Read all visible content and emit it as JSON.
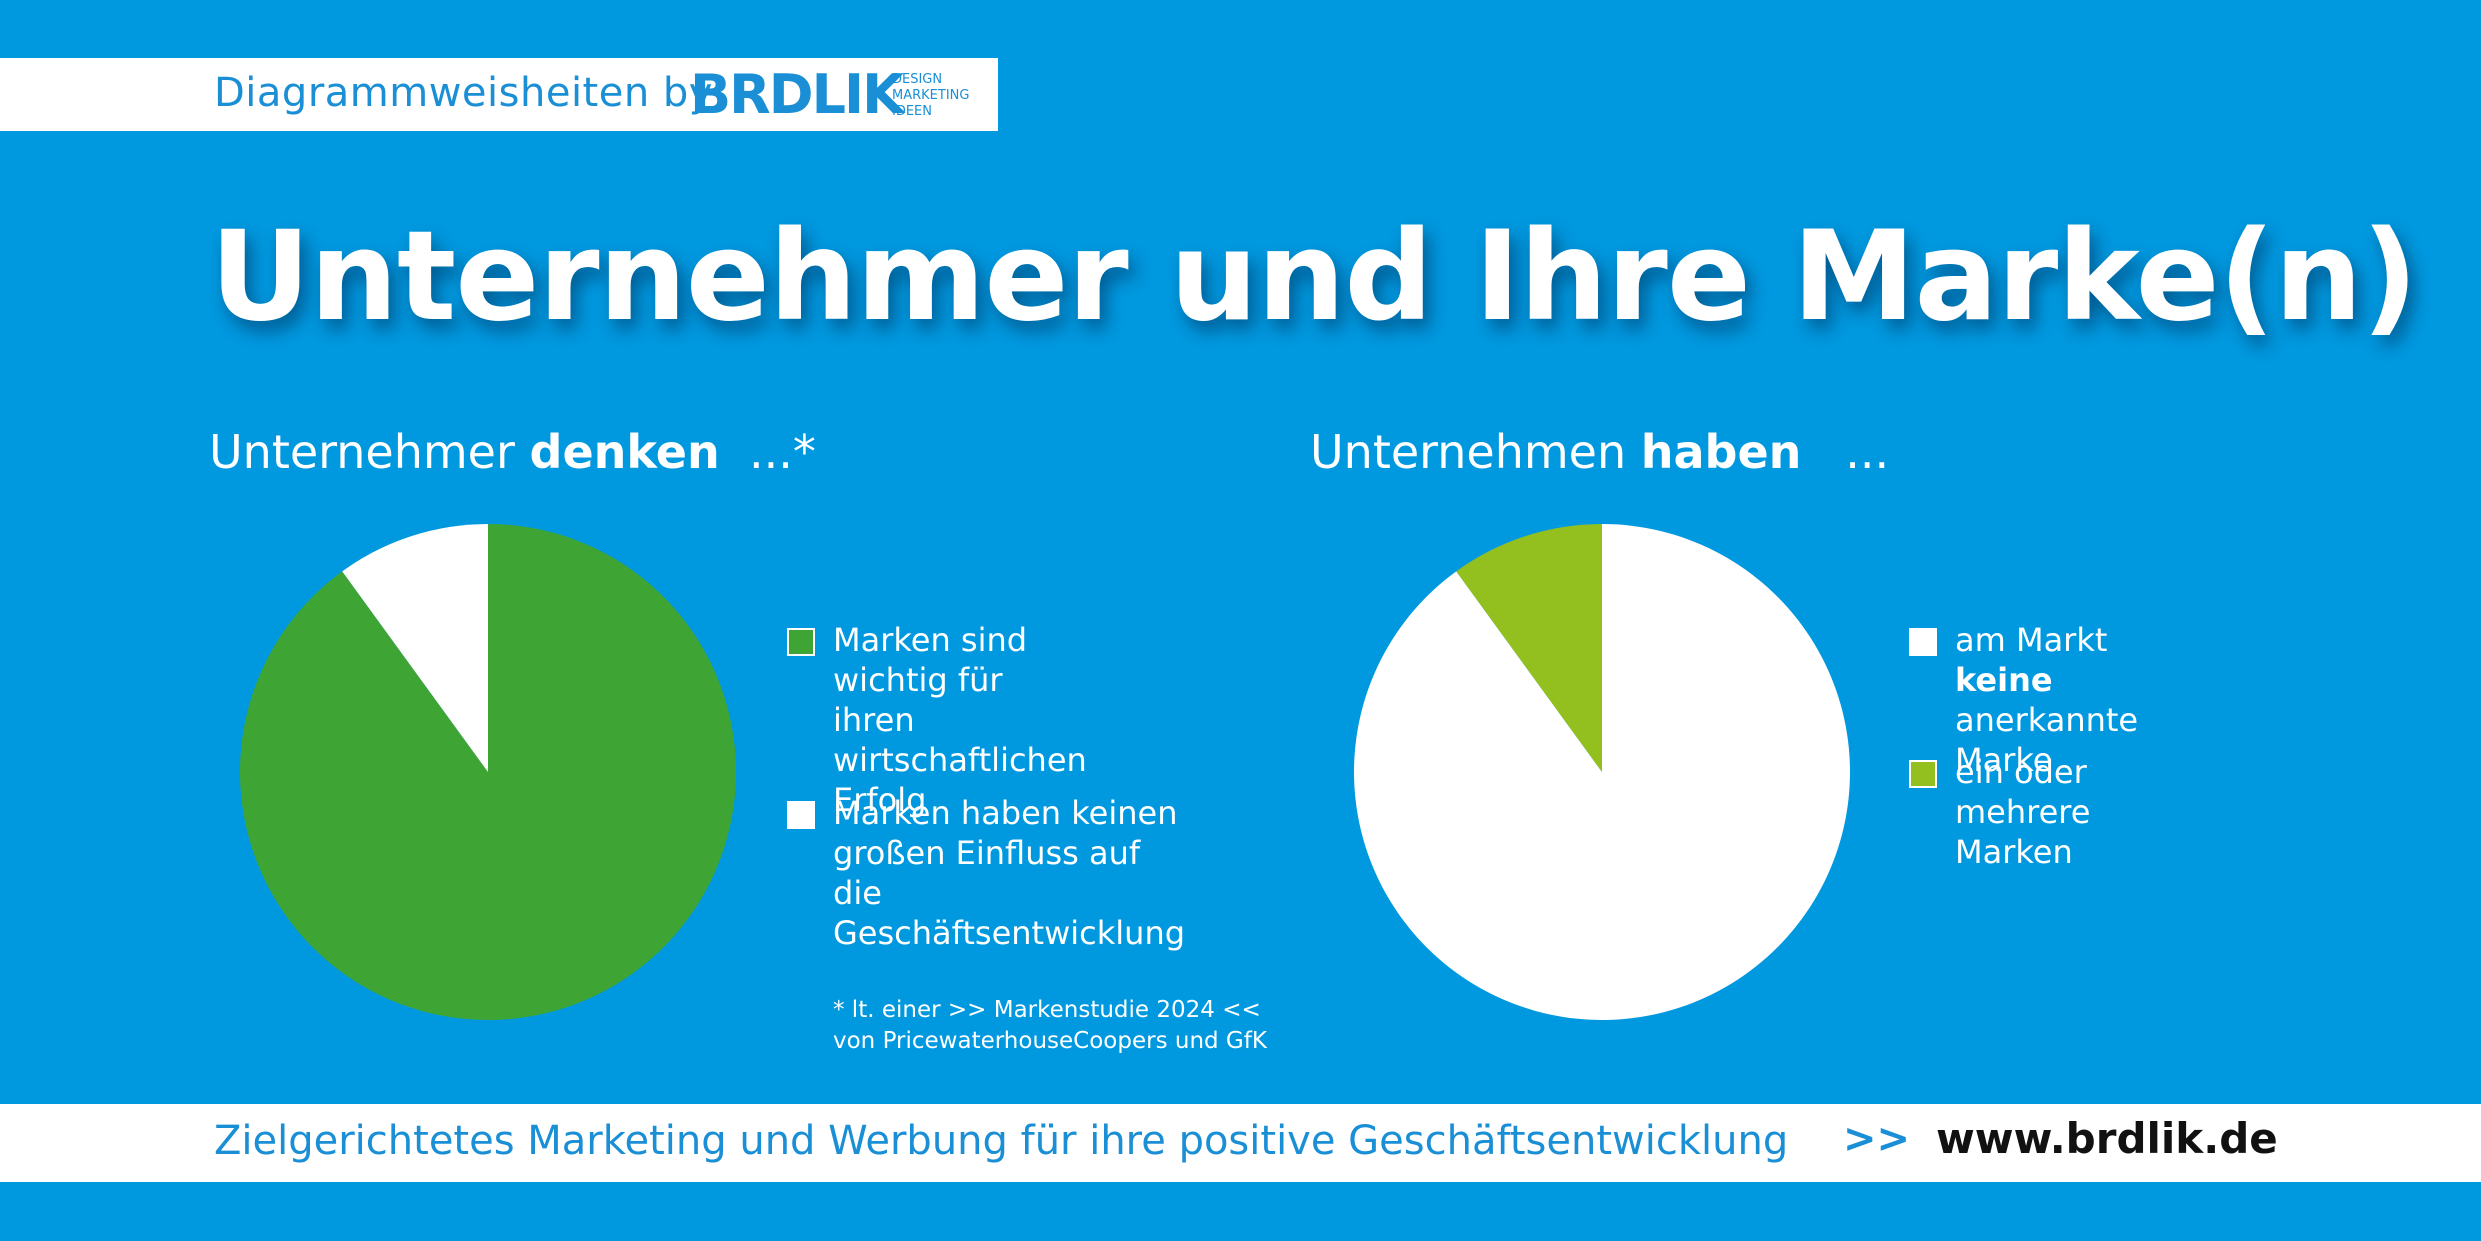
{
  "header": {
    "label": "Diagrammweisheiten by",
    "logo_text": "BRDLIK",
    "logo_sub": [
      "DESIGN",
      "MARKETING",
      "IDEEN"
    ]
  },
  "title": "Unternehmer und Ihre Marke(n)",
  "colors": {
    "background": "#0099e0",
    "green": "#3ea535",
    "lime": "#93c01f",
    "white": "#ffffff",
    "brand_blue": "#1a8fd6"
  },
  "chart_data": [
    {
      "type": "pie",
      "title_prefix": "Unternehmer ",
      "title_bold": "denken",
      "title_suffix": "  ...*",
      "legend_placement": "right",
      "slices": [
        {
          "label": "Marken sind wichtig für\nihren wirtschaftlichen\nErfolg",
          "value": 90,
          "color": "#3ea535"
        },
        {
          "label": "Marken haben keinen\ngroßen Einfluss auf die\nGeschäftsentwicklung",
          "value": 10,
          "color": "#ffffff"
        }
      ]
    },
    {
      "type": "pie",
      "title_prefix": "Unternehmen ",
      "title_bold": "haben",
      "title_suffix": "   ...",
      "legend_placement": "right",
      "slices": [
        {
          "label_prefix": "am Markt ",
          "label_bold": "keine",
          "label_suffix": "\nanerkannte Marke",
          "value": 90,
          "color": "#ffffff"
        },
        {
          "label_prefix": "ein oder\nmehrere Marken",
          "label_bold": "",
          "label_suffix": "",
          "value": 10,
          "color": "#93c01f"
        }
      ]
    }
  ],
  "footnote": "* lt. einer >> Markenstudie 2024 <<\nvon PricewaterhouseCoopers und GfK",
  "footer": {
    "tagline": "Zielgerichtetes Marketing und Werbung für ihre positive Geschäftsentwicklung",
    "arrows": ">>",
    "website": "www.brdlik.de"
  }
}
